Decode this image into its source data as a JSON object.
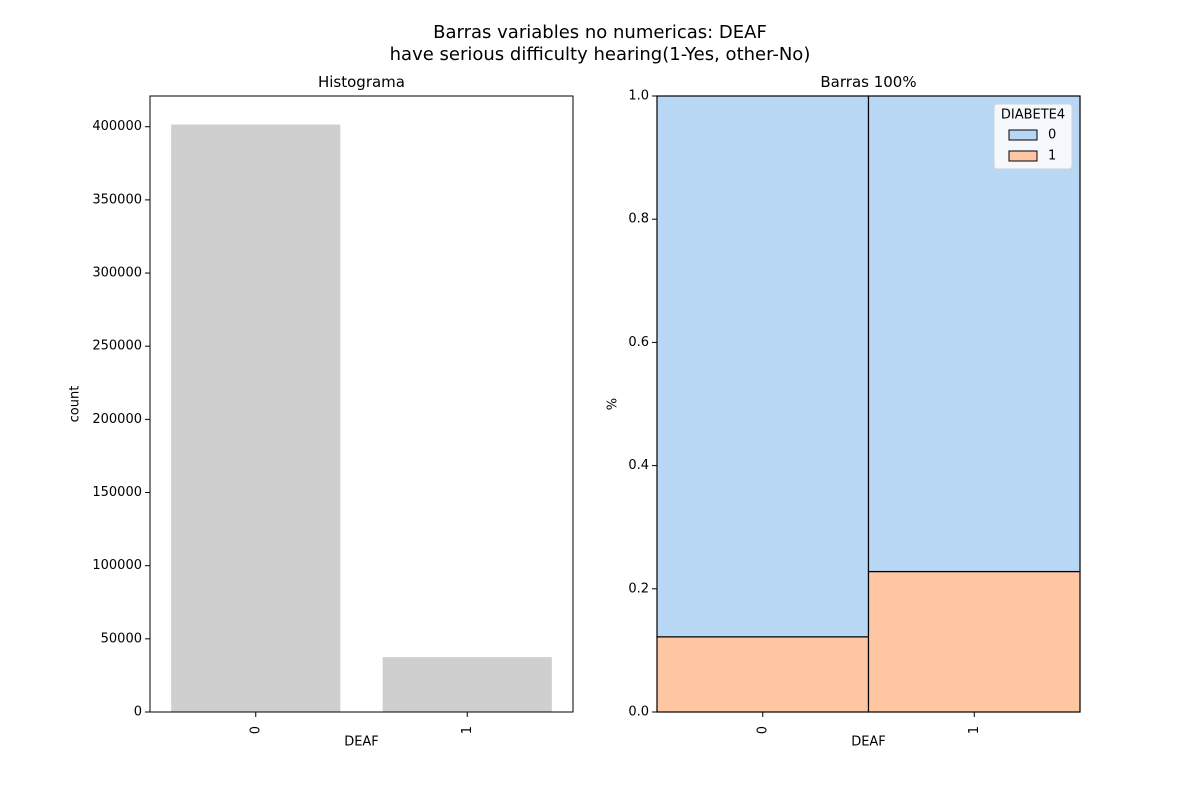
{
  "figure": {
    "title_line1": "Barras variables no numericas: DEAF",
    "title_line2": "have serious difficulty hearing(1-Yes, other-No)"
  },
  "chart_data": [
    {
      "type": "bar",
      "title": "Histograma",
      "xlabel": "DEAF",
      "ylabel": "count",
      "categories": [
        "0",
        "1"
      ],
      "values": [
        401500,
        37500
      ],
      "ylim": [
        0,
        421000
      ],
      "yticks": [
        0,
        50000,
        100000,
        150000,
        200000,
        250000,
        300000,
        350000,
        400000
      ],
      "ytick_labels": [
        "0",
        "50000",
        "100000",
        "150000",
        "200000",
        "250000",
        "300000",
        "350000",
        "400000"
      ],
      "bar_color": "#cfcfcf",
      "grid": false
    },
    {
      "type": "bar",
      "stacked": true,
      "title": "Barras 100%",
      "xlabel": "DEAF",
      "ylabel": "%",
      "categories": [
        "0",
        "1"
      ],
      "series": [
        {
          "name": "1",
          "values": [
            0.122,
            0.228
          ],
          "color": "#ffc6a4"
        },
        {
          "name": "0",
          "values": [
            0.878,
            0.772
          ],
          "color": "#b8d7f5"
        }
      ],
      "ylim": [
        0,
        1
      ],
      "yticks": [
        0,
        0.2,
        0.4,
        0.6,
        0.8,
        1.0
      ],
      "ytick_labels": [
        "0.0",
        "0.2",
        "0.4",
        "0.6",
        "0.8",
        "1.0"
      ],
      "legend": {
        "title": "DIABETE4",
        "entries": [
          "0",
          "1"
        ],
        "position": "top-right"
      },
      "grid": false
    }
  ]
}
